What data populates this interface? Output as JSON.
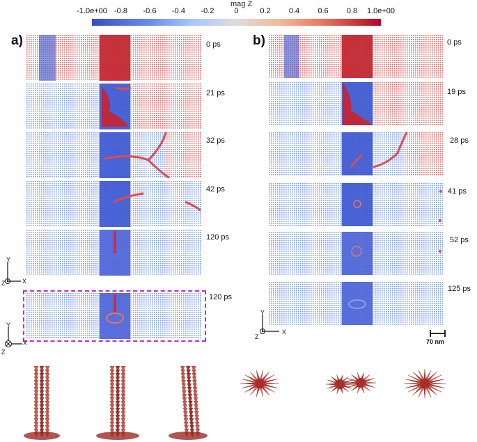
{
  "colorbar": {
    "title": "mag Z",
    "ticks": [
      "-1.0e+00",
      "-0.8",
      "-0.6",
      "-0.4",
      "-0.2",
      "0",
      "0.2",
      "0.4",
      "0.6",
      "0.8",
      "1.0e+00"
    ],
    "colors": {
      "low": "#3b4cc0",
      "mid": "#dddddd",
      "high": "#b40426"
    }
  },
  "panel_a": {
    "label": "a)",
    "times": [
      "0 ps",
      "21 ps",
      "32 ps",
      "42 ps",
      "120 ps"
    ],
    "extra_time": "120 ps",
    "axes_top": {
      "y": "Y",
      "z": "Z",
      "x": "X"
    },
    "axes_bottom": {
      "y": "Y",
      "z": "Z",
      "x": "X"
    }
  },
  "panel_b": {
    "label": "b)",
    "times": [
      "0 ps",
      "19 ps",
      "28 ps",
      "41 ps",
      "52 ps",
      "125 ps"
    ],
    "axes": {
      "y": "Y",
      "z": "Z",
      "x": "X"
    },
    "scale_bar": "70 nm"
  },
  "highlight_color": "#c828c8"
}
